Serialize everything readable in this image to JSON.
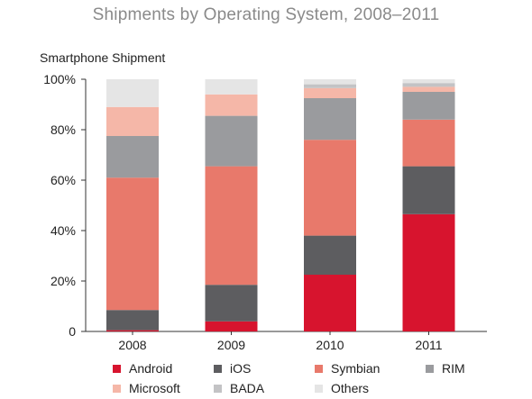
{
  "title": "Shipments by Operating System, 2008–2011",
  "y_axis_title": "Smartphone Shipment",
  "legend_rows": [
    [
      {
        "label": "Android",
        "color": "#d7142e"
      },
      {
        "label": "iOS",
        "color": "#5d5d60"
      },
      {
        "label": "Symbian",
        "color": "#e8796b"
      },
      {
        "label": "RIM",
        "color": "#9a9b9e"
      }
    ],
    [
      {
        "label": "Microsoft",
        "color": "#f5b7a8"
      },
      {
        "label": "BADA",
        "color": "#c3c3c5"
      },
      {
        "label": "Others",
        "color": "#e5e5e5"
      }
    ]
  ],
  "chart_data": {
    "type": "bar",
    "stacked": true,
    "title": "Shipments by Operating System, 2008–2011",
    "ylabel": "Smartphone Shipment",
    "xlabel": "",
    "ylim": [
      0,
      100
    ],
    "y_ticks": [
      "0",
      "20%",
      "40%",
      "60%",
      "80%",
      "100%"
    ],
    "y_tick_values": [
      0,
      20,
      40,
      60,
      80,
      100
    ],
    "categories": [
      "2008",
      "2009",
      "2010",
      "2011"
    ],
    "series": [
      {
        "name": "Android",
        "color": "#d7142e",
        "values": [
          0.5,
          4,
          22.5,
          46.5
        ]
      },
      {
        "name": "iOS",
        "color": "#5d5d60",
        "values": [
          8,
          14.5,
          15.5,
          19
        ]
      },
      {
        "name": "Symbian",
        "color": "#e8796b",
        "values": [
          52.5,
          47,
          38,
          18.5
        ]
      },
      {
        "name": "RIM",
        "color": "#9a9b9e",
        "values": [
          16.5,
          20,
          16.5,
          11
        ]
      },
      {
        "name": "Microsoft",
        "color": "#f5b7a8",
        "values": [
          11.5,
          8.5,
          4,
          2
        ]
      },
      {
        "name": "BADA",
        "color": "#c3c3c5",
        "values": [
          0,
          0,
          1.5,
          1.5
        ]
      },
      {
        "name": "Others",
        "color": "#e5e5e5",
        "values": [
          11,
          6,
          2,
          1.5
        ]
      }
    ],
    "grid": false,
    "legend_position": "bottom"
  }
}
